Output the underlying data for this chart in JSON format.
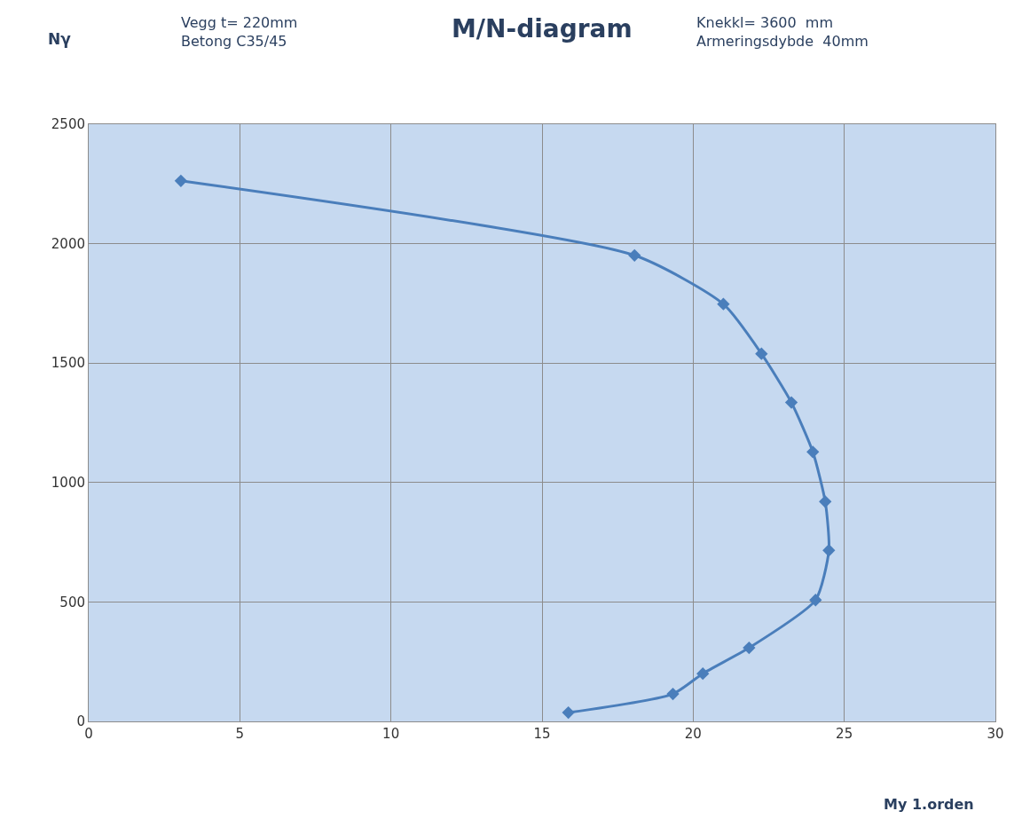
{
  "chart_data": {
    "type": "line",
    "title": "M/N-diagram",
    "xlabel": "My 1.orden",
    "ylabel": "Nγ",
    "annotations": [
      "Vegg t= 220mm\nBetong C35/45",
      "Knekkl= 3600  mm\nArmeringsdybde  40mm"
    ],
    "x": [
      3.05,
      18.06,
      21.0,
      22.26,
      23.25,
      23.96,
      24.37,
      24.49,
      24.05,
      21.85,
      20.32,
      19.33,
      15.87
    ],
    "series": [
      {
        "color": "#4a7ebb",
        "values": [
          2263,
          1951,
          1747,
          1539,
          1335,
          1128,
          920,
          716,
          508,
          308,
          200,
          115,
          37
        ]
      }
    ],
    "xlim": [
      0,
      30
    ],
    "xticks": [
      0,
      5,
      10,
      15,
      20,
      25,
      30
    ],
    "ylim": [
      0,
      2500
    ],
    "yticks": [
      0,
      500,
      1000,
      1500,
      2000,
      2500
    ],
    "grid": true,
    "marker": "diamond",
    "line_style": "solid",
    "legend": false
  }
}
